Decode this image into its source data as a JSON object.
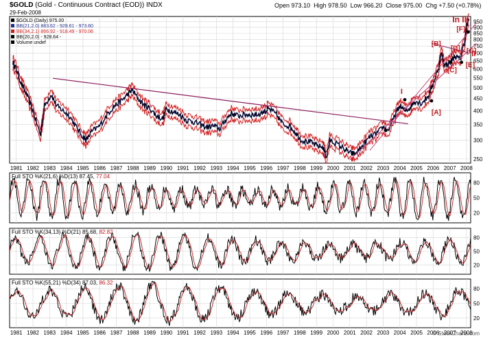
{
  "header": {
    "symbol": "$GOLD",
    "description": "(Gold - Continuous Contract (EOD)) INDX",
    "date": "29-Feb-2008",
    "open_label": "Open",
    "open": "973.10",
    "high_label": "High",
    "high": "978.50",
    "low_label": "Low",
    "low": "966.20",
    "close_label": "Close",
    "close": "975.00",
    "chg_label": "Chg",
    "chg": "+7.50 (+0.78%)",
    "copyright": "© StockCharts.com"
  },
  "legend": [
    {
      "text": "$GOLD (Daily) 975.00",
      "color": "#000000"
    },
    {
      "text": "BB(21,2.0) 883.62 - 928.61 - 973.60",
      "color": "#1f2a8a"
    },
    {
      "text": "BB(34,2.1) 866.92 - 918.49 - 970.06",
      "color": "#d21a1a"
    },
    {
      "text": "BB(20,2.0) - 928.64 -",
      "color": "#000000"
    },
    {
      "text": "Volume undef",
      "color": "#000000"
    }
  ],
  "wave_labels": {
    "in_iii": "In III",
    "i": "I",
    "ii": "II",
    "a": "[A]",
    "b": "[B]",
    "c": "[C]",
    "d": "[D]",
    "e": "[E]",
    "f": "[F]",
    "g": "[G]"
  },
  "colors": {
    "price": "#000000",
    "bands": "#d21a1a",
    "bands_inner": "#1f2a8a",
    "trendline": "#8b1a5a",
    "channel": "#c44a7a",
    "sto_k": "#000000",
    "sto_d": "#c0181c",
    "wave_label": "#c0181c",
    "grid": "#d4d4d4"
  },
  "chart_data": [
    {
      "type": "line",
      "title": "$GOLD (Daily) 975.00",
      "y_scale": "log",
      "ylim": [
        240,
        1000
      ],
      "y_ticks": [
        250,
        300,
        350,
        400,
        450,
        500,
        550,
        600,
        650,
        700,
        750,
        800,
        850,
        900,
        950
      ],
      "x_ticks": [
        "1981",
        "1982",
        "1983",
        "1984",
        "1985",
        "1986",
        "1987",
        "1988",
        "1989",
        "1990",
        "1991",
        "1992",
        "1993",
        "1994",
        "1995",
        "1996",
        "1997",
        "1998",
        "1999",
        "2000",
        "2001",
        "2002",
        "2003",
        "2004",
        "2005",
        "2006",
        "2007",
        "2008"
      ],
      "grid": true,
      "series": [
        {
          "name": "$GOLD (Daily)",
          "x": [
            1980.8,
            1981.0,
            1981.3,
            1981.6,
            1982.0,
            1982.45,
            1982.7,
            1983.1,
            1983.4,
            1983.8,
            1984.2,
            1984.6,
            1985.0,
            1985.2,
            1985.5,
            1986.0,
            1986.5,
            1986.9,
            1987.3,
            1987.7,
            1987.95,
            1988.3,
            1988.7,
            1989.0,
            1989.4,
            1989.8,
            1990.0,
            1990.4,
            1990.8,
            1991.2,
            1991.6,
            1992.0,
            1992.4,
            1992.8,
            1993.2,
            1993.6,
            1993.9,
            1994.3,
            1994.7,
            1995.1,
            1995.5,
            1996.0,
            1996.1,
            1996.6,
            1997.0,
            1997.4,
            1997.8,
            1998.1,
            1998.6,
            1999.0,
            1999.4,
            1999.6,
            1999.8,
            2000.2,
            2000.7,
            2001.0,
            2001.3,
            2001.8,
            2002.2,
            2002.6,
            2003.0,
            2003.3,
            2003.7,
            2004.0,
            2004.3,
            2004.6,
            2004.9,
            2005.3,
            2005.7,
            2006.0,
            2006.3,
            2006.5,
            2006.7,
            2007.0,
            2007.3,
            2007.6,
            2007.9,
            2008.0,
            2008.15
          ],
          "values": [
            640,
            600,
            520,
            470,
            400,
            315,
            420,
            470,
            420,
            400,
            380,
            340,
            310,
            300,
            325,
            345,
            390,
            420,
            440,
            470,
            490,
            450,
            420,
            410,
            380,
            370,
            410,
            395,
            385,
            365,
            360,
            350,
            340,
            345,
            335,
            370,
            390,
            380,
            385,
            385,
            385,
            400,
            410,
            385,
            350,
            345,
            320,
            300,
            295,
            285,
            280,
            255,
            300,
            290,
            275,
            265,
            262,
            285,
            310,
            320,
            340,
            330,
            380,
            420,
            400,
            410,
            440,
            430,
            460,
            520,
            600,
            700,
            620,
            640,
            680,
            660,
            790,
            900,
            975
          ]
        }
      ],
      "annotations": [
        "I",
        "II",
        "In III",
        "[A]",
        "[B]",
        "[C]",
        "[D]",
        "[E]",
        "[F]",
        "[G]"
      ]
    },
    {
      "type": "line",
      "title": "Full STO %K(21,6) %D(13) 87.45, 77.04",
      "ylim": [
        0,
        100
      ],
      "y_ticks": [
        20,
        50,
        80
      ],
      "k_label": "87.45",
      "d_label": "77.04",
      "series": [
        {
          "name": "%K(21,6)"
        },
        {
          "name": "%D(13)"
        }
      ]
    },
    {
      "type": "line",
      "title": "Full STO %K(34,13) %D(21) 85.68, 82.82",
      "ylim": [
        0,
        100
      ],
      "y_ticks": [
        20,
        50,
        80
      ],
      "k_label": "85.68",
      "d_label": "82.82",
      "series": [
        {
          "name": "%K(34,13)"
        },
        {
          "name": "%D(21)"
        }
      ]
    },
    {
      "type": "line",
      "title": "Full STO %K(55,21) %D(34) 87.03, 86.32",
      "ylim": [
        0,
        100
      ],
      "y_ticks": [
        20,
        50,
        80
      ],
      "k_label": "87.03",
      "d_label": "86.32",
      "series": [
        {
          "name": "%K(55,21)"
        },
        {
          "name": "%D(34)"
        }
      ]
    }
  ]
}
